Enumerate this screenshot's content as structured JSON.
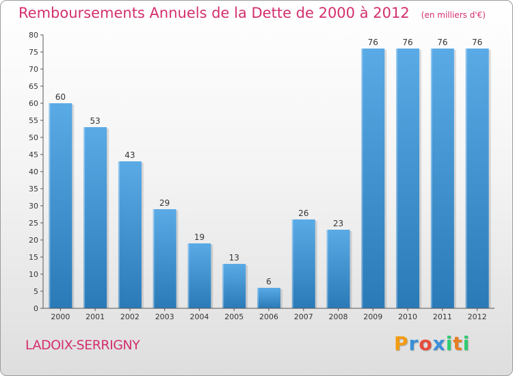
{
  "chart_data": {
    "type": "bar",
    "title": "Remboursements Annuels de la Dette de 2000 à 2012",
    "unit_note": "(en milliers d'€)",
    "categories": [
      "2000",
      "2001",
      "2002",
      "2003",
      "2004",
      "2005",
      "2006",
      "2007",
      "2008",
      "2009",
      "2010",
      "2011",
      "2012"
    ],
    "values": [
      60,
      53,
      43,
      29,
      19,
      13,
      6,
      26,
      23,
      76,
      76,
      76,
      76
    ],
    "ylim": [
      0,
      80
    ],
    "yticks": [
      0,
      5,
      10,
      15,
      20,
      25,
      30,
      35,
      40,
      45,
      50,
      55,
      60,
      65,
      70,
      75,
      80
    ],
    "xlabel": "",
    "ylabel": "",
    "grid": false,
    "bar_color_top": "#5aaae6",
    "bar_color_bottom": "#2a7ab8",
    "data_labels": true
  },
  "commune": "LADOIX-SERRIGNY",
  "logo": {
    "letters": [
      "P",
      "r",
      "o",
      "x",
      "i",
      "t",
      "i"
    ],
    "colors": [
      "#f39c12",
      "#3a8fd8",
      "#e74c3c",
      "#3a8fd8",
      "#2ecc71",
      "#e67e22",
      "#2ecc71"
    ]
  },
  "colors": {
    "title": "#d42e6e",
    "axis": "#555555"
  }
}
